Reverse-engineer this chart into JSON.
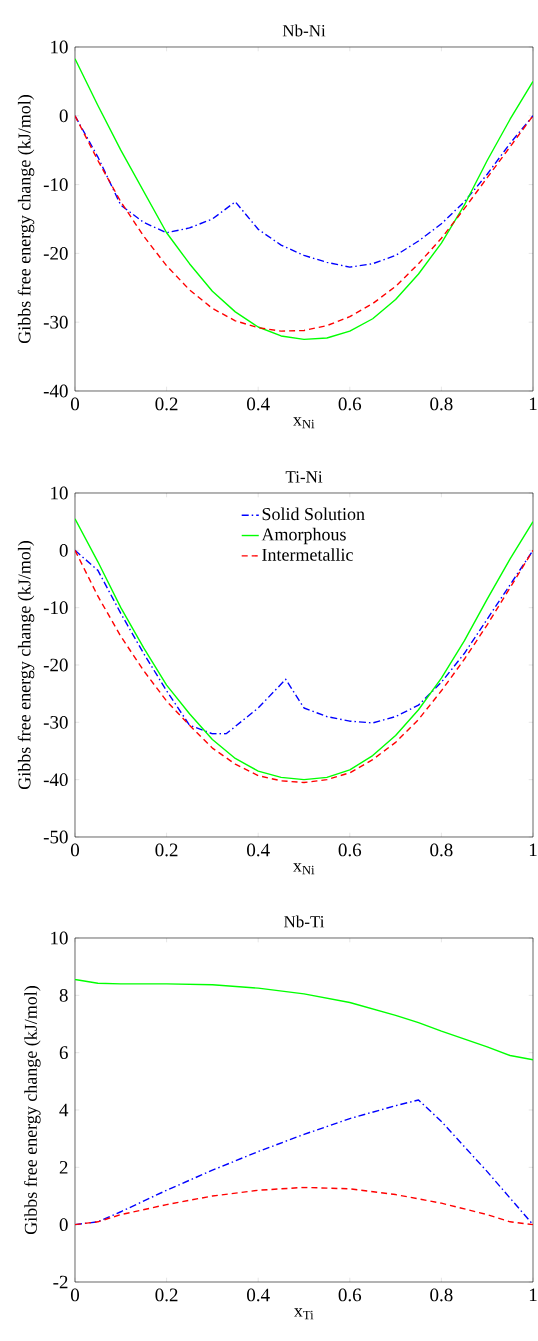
{
  "chart_data": [
    {
      "type": "line",
      "title": "Nb-Ni",
      "xlabel": "x$_{Ni}$",
      "ylabel": "Gibbs free energy change (kJ/mol)",
      "xlim": [
        0,
        1
      ],
      "ylim": [
        -40,
        10
      ],
      "xticks": [
        0,
        0.2,
        0.4,
        0.6,
        0.8,
        1
      ],
      "yticks": [
        -40,
        -30,
        -20,
        -10,
        0,
        10
      ],
      "legend": false,
      "x": [
        0,
        0.05,
        0.1,
        0.15,
        0.2,
        0.25,
        0.3,
        0.35,
        0.4,
        0.45,
        0.5,
        0.55,
        0.6,
        0.65,
        0.7,
        0.75,
        0.8,
        0.85,
        0.9,
        0.95,
        1
      ],
      "series": [
        {
          "color": "#0000ff",
          "line_style": "dashdot",
          "values": [
            0,
            -6,
            -13,
            -15.5,
            -17,
            -16.3,
            -15,
            -12.5,
            -16.5,
            -18.8,
            -20.3,
            -21.3,
            -22,
            -21.5,
            -20.3,
            -18.2,
            -15.7,
            -12.5,
            -8.5,
            -4,
            0
          ]
        },
        {
          "color": "#00ff00",
          "line_style": "solid",
          "values": [
            8.3,
            1.5,
            -5,
            -11,
            -17,
            -21.5,
            -25.5,
            -28.5,
            -30.7,
            -32,
            -32.5,
            -32.3,
            -31.3,
            -29.5,
            -26.7,
            -23,
            -18.5,
            -13,
            -6.5,
            -0.5,
            5
          ]
        },
        {
          "color": "#ff0000",
          "line_style": "dashed",
          "values": [
            0,
            -6.5,
            -12.5,
            -17.5,
            -21.8,
            -25.3,
            -28,
            -29.8,
            -30.8,
            -31.3,
            -31.2,
            -30.5,
            -29.2,
            -27.3,
            -24.8,
            -21.5,
            -17.8,
            -13.5,
            -9,
            -4.5,
            0
          ]
        }
      ]
    },
    {
      "type": "line",
      "title": "Ti-Ni",
      "xlabel": "x$_{Ni}$",
      "ylabel": "Gibbs free energy change (kJ/mol)",
      "xlim": [
        0,
        1
      ],
      "ylim": [
        -50,
        10
      ],
      "xticks": [
        0,
        0.2,
        0.4,
        0.6,
        0.8,
        1
      ],
      "yticks": [
        -50,
        -40,
        -30,
        -20,
        -10,
        0,
        10
      ],
      "legend": "top",
      "series": [
        {
          "name": "Solid Solution",
          "color": "#0000ff",
          "line_style": "dashdot",
          "x": [
            0,
            0.05,
            0.1,
            0.15,
            0.2,
            0.25,
            0.3,
            0.33,
            0.4,
            0.46,
            0.5,
            0.55,
            0.6,
            0.65,
            0.7,
            0.75,
            0.8,
            0.85,
            0.9,
            0.95,
            1
          ],
          "values": [
            0,
            -3.5,
            -11,
            -18,
            -24.5,
            -30.5,
            -32,
            -32,
            -27.5,
            -22.5,
            -27.5,
            -29,
            -29.8,
            -30.1,
            -29,
            -27,
            -23,
            -18,
            -12,
            -6,
            0
          ]
        },
        {
          "name": "Amorphous",
          "color": "#00ff00",
          "line_style": "solid",
          "x": [
            0,
            0.05,
            0.1,
            0.15,
            0.2,
            0.25,
            0.3,
            0.35,
            0.4,
            0.45,
            0.5,
            0.55,
            0.6,
            0.65,
            0.7,
            0.75,
            0.8,
            0.85,
            0.9,
            0.95,
            1
          ],
          "values": [
            5.5,
            -2,
            -10,
            -17,
            -23.5,
            -28.5,
            -33,
            -36.3,
            -38.5,
            -39.6,
            -40,
            -39.6,
            -38.3,
            -35.8,
            -32.3,
            -27.8,
            -22.3,
            -15.8,
            -8.5,
            -1.5,
            5
          ]
        },
        {
          "name": "Intermetallic",
          "color": "#ff0000",
          "line_style": "dashed",
          "x": [
            0,
            0.05,
            0.1,
            0.15,
            0.2,
            0.25,
            0.3,
            0.35,
            0.4,
            0.45,
            0.5,
            0.55,
            0.6,
            0.65,
            0.7,
            0.75,
            0.8,
            0.85,
            0.9,
            0.95,
            1
          ],
          "values": [
            0,
            -8,
            -15,
            -21,
            -26.3,
            -30.5,
            -34.5,
            -37.3,
            -39.3,
            -40.2,
            -40.5,
            -40,
            -38.8,
            -36.5,
            -33.5,
            -29.5,
            -24.5,
            -19,
            -13,
            -6.5,
            0
          ]
        }
      ]
    },
    {
      "type": "line",
      "title": "Nb-Ti",
      "xlabel": "x$_{Ti}$",
      "ylabel": "Gibbs free energy change (kJ/mol)",
      "xlim": [
        0,
        1
      ],
      "ylim": [
        -2,
        10
      ],
      "xticks": [
        0,
        0.2,
        0.4,
        0.6,
        0.8,
        1
      ],
      "yticks": [
        -2,
        0,
        2,
        4,
        6,
        8,
        10
      ],
      "legend": false,
      "series": [
        {
          "color": "#0000ff",
          "line_style": "dashdot",
          "x": [
            0,
            0.05,
            0.1,
            0.2,
            0.3,
            0.4,
            0.5,
            0.6,
            0.7,
            0.75,
            0.8,
            0.9,
            1
          ],
          "values": [
            0,
            0.1,
            0.45,
            1.2,
            1.9,
            2.55,
            3.15,
            3.7,
            4.15,
            4.35,
            3.6,
            1.85,
            0
          ]
        },
        {
          "color": "#00ff00",
          "line_style": "solid",
          "x": [
            0,
            0.05,
            0.1,
            0.2,
            0.3,
            0.4,
            0.5,
            0.6,
            0.7,
            0.75,
            0.8,
            0.9,
            0.95,
            1
          ],
          "values": [
            8.55,
            8.42,
            8.4,
            8.4,
            8.37,
            8.25,
            8.05,
            7.75,
            7.3,
            7.05,
            6.75,
            6.2,
            5.9,
            5.75
          ]
        },
        {
          "color": "#ff0000",
          "line_style": "dashed",
          "x": [
            0,
            0.05,
            0.1,
            0.2,
            0.3,
            0.4,
            0.5,
            0.6,
            0.7,
            0.8,
            0.9,
            0.95,
            1
          ],
          "values": [
            0,
            0.1,
            0.35,
            0.7,
            1.0,
            1.2,
            1.3,
            1.25,
            1.05,
            0.75,
            0.35,
            0.1,
            0
          ]
        }
      ]
    }
  ]
}
